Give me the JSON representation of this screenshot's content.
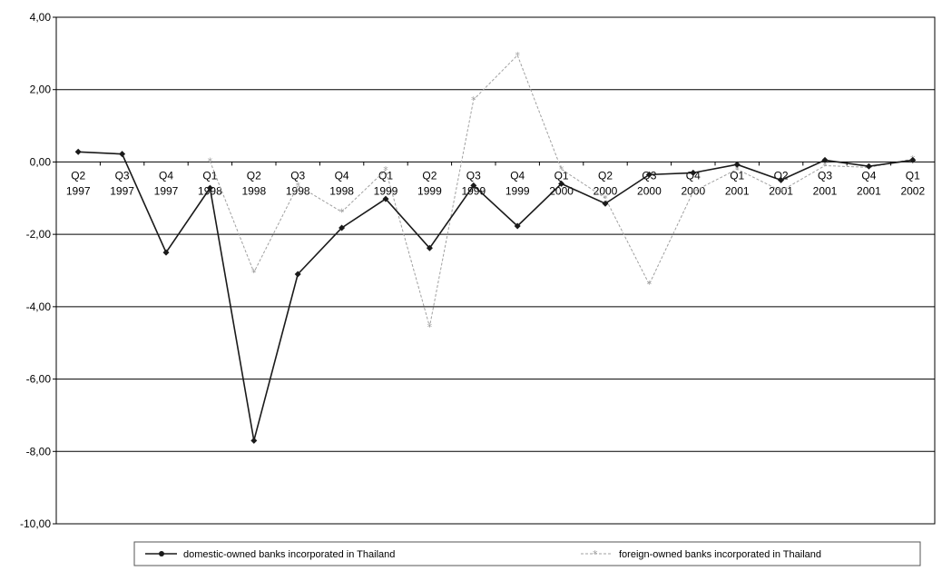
{
  "chart_data": {
    "type": "line",
    "categories": [
      [
        "Q2",
        "1997"
      ],
      [
        "Q3",
        "1997"
      ],
      [
        "Q4",
        "1997"
      ],
      [
        "Q1",
        "1998"
      ],
      [
        "Q2",
        "1998"
      ],
      [
        "Q3",
        "1998"
      ],
      [
        "Q4",
        "1998"
      ],
      [
        "Q1",
        "1999"
      ],
      [
        "Q2",
        "1999"
      ],
      [
        "Q3",
        "1999"
      ],
      [
        "Q4",
        "1999"
      ],
      [
        "Q1",
        "2000"
      ],
      [
        "Q2",
        "2000"
      ],
      [
        "Q3",
        "2000"
      ],
      [
        "Q4",
        "2000"
      ],
      [
        "Q1",
        "2001"
      ],
      [
        "Q2",
        "2001"
      ],
      [
        "Q3",
        "2001"
      ],
      [
        "Q4",
        "2001"
      ],
      [
        "Q1",
        "2002"
      ]
    ],
    "ylim": [
      -10,
      4
    ],
    "yticks": [
      "4,00",
      "2,00",
      "0,00",
      "-2,00",
      "-4,00",
      "-6,00",
      "-8,00",
      "-10,00"
    ],
    "ytick_values": [
      4,
      2,
      0,
      -2,
      -4,
      -6,
      -8,
      -10
    ],
    "grid": true,
    "legend_position": "bottom",
    "series": [
      {
        "name": "domestic-owned banks incorporated in Thailand",
        "color": "#1a1a1a",
        "marker": "diamond",
        "values": [
          0.28,
          0.22,
          -2.5,
          -0.72,
          -7.7,
          -3.1,
          -1.82,
          -1.02,
          -2.38,
          -0.65,
          -1.77,
          -0.6,
          -1.15,
          -0.35,
          -0.3,
          -0.07,
          -0.5,
          0.05,
          -0.12,
          0.05
        ]
      },
      {
        "name": "foreign-owned banks incorporated in Thailand",
        "color": "#a0a0a0",
        "marker": "star",
        "values": [
          null,
          null,
          null,
          0.02,
          -3.05,
          -0.65,
          -1.38,
          -0.22,
          -4.55,
          1.72,
          2.95,
          -0.2,
          -1.0,
          -3.38,
          -0.82,
          -0.2,
          -0.8,
          -0.1,
          -0.15,
          0.08
        ]
      }
    ]
  }
}
